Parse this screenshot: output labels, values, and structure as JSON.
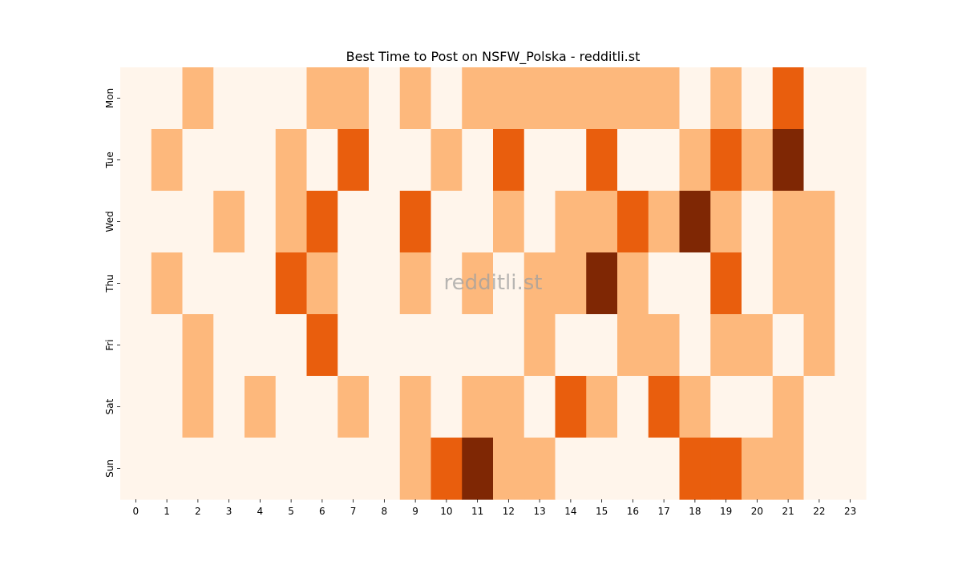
{
  "chart_data": {
    "type": "heatmap",
    "title": "Best Time to Post on NSFW_Polska - redditli.st",
    "watermark": "redditli.st",
    "xlabel": "",
    "ylabel": "",
    "x": [
      "0",
      "1",
      "2",
      "3",
      "4",
      "5",
      "6",
      "7",
      "8",
      "9",
      "10",
      "11",
      "12",
      "13",
      "14",
      "15",
      "16",
      "17",
      "18",
      "19",
      "20",
      "21",
      "22",
      "23"
    ],
    "y": [
      "Mon",
      "Tue",
      "Wed",
      "Thu",
      "Fri",
      "Sat",
      "Sun"
    ],
    "values": [
      [
        0,
        0,
        1,
        0,
        0,
        0,
        1,
        1,
        0,
        1,
        0,
        1,
        1,
        1,
        1,
        1,
        1,
        1,
        0,
        1,
        0,
        2,
        0,
        0
      ],
      [
        0,
        1,
        0,
        0,
        0,
        1,
        0,
        2,
        0,
        0,
        1,
        0,
        2,
        0,
        0,
        2,
        0,
        0,
        1,
        2,
        1,
        3,
        0,
        0
      ],
      [
        0,
        0,
        0,
        1,
        0,
        1,
        2,
        0,
        0,
        2,
        0,
        0,
        1,
        0,
        1,
        1,
        2,
        1,
        3,
        1,
        0,
        1,
        1,
        0
      ],
      [
        0,
        1,
        0,
        0,
        0,
        2,
        1,
        0,
        0,
        1,
        0,
        1,
        0,
        1,
        1,
        3,
        1,
        0,
        0,
        2,
        0,
        1,
        1,
        0
      ],
      [
        0,
        0,
        1,
        0,
        0,
        0,
        2,
        0,
        0,
        0,
        0,
        0,
        0,
        1,
        0,
        0,
        1,
        1,
        0,
        1,
        1,
        0,
        1,
        0
      ],
      [
        0,
        0,
        1,
        0,
        1,
        0,
        0,
        1,
        0,
        1,
        0,
        1,
        1,
        0,
        2,
        1,
        0,
        2,
        1,
        0,
        0,
        1,
        0,
        0
      ],
      [
        0,
        0,
        0,
        0,
        0,
        0,
        0,
        0,
        0,
        1,
        2,
        3,
        1,
        1,
        0,
        0,
        0,
        0,
        2,
        2,
        1,
        1,
        0,
        0
      ]
    ],
    "color_scale": [
      "#fff5eb",
      "#fdb87c",
      "#e95e0d",
      "#7f2704"
    ],
    "colorbar": false,
    "grid": false
  }
}
